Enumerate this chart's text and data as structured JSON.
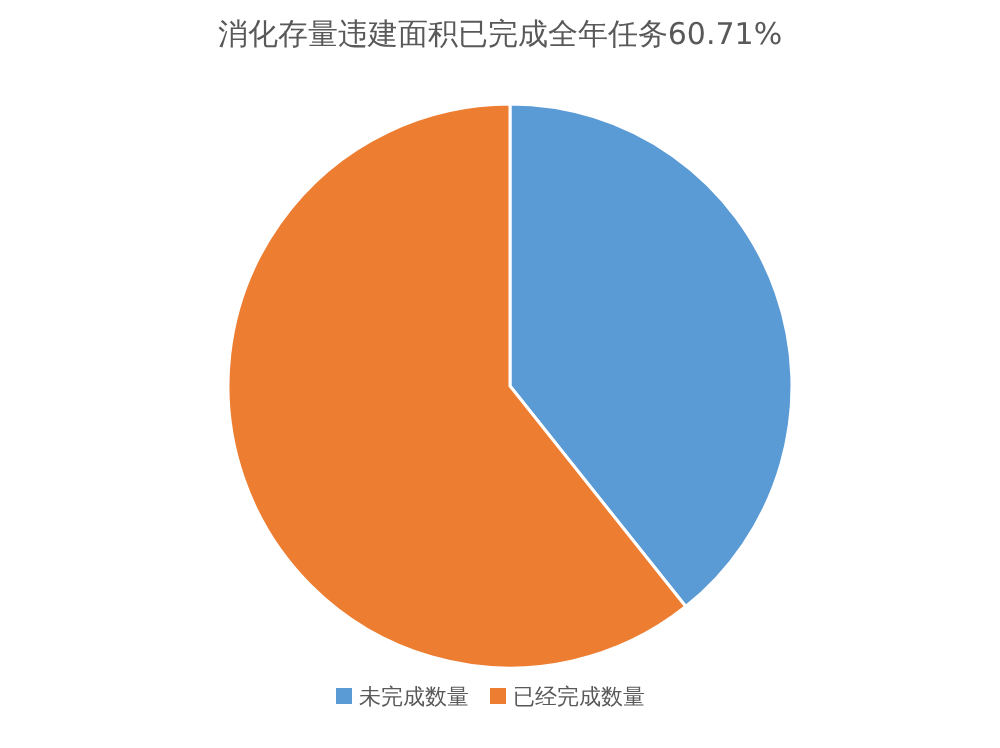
{
  "chart_data": {
    "type": "pie",
    "title": "消化存量违建面积已完成全年任务60.71%",
    "categories": [
      "未完成数量",
      "已经完成数量"
    ],
    "values": [
      39.29,
      60.71
    ],
    "colors": [
      "#5b9bd5",
      "#ed7d31"
    ],
    "legend": "bottom"
  }
}
